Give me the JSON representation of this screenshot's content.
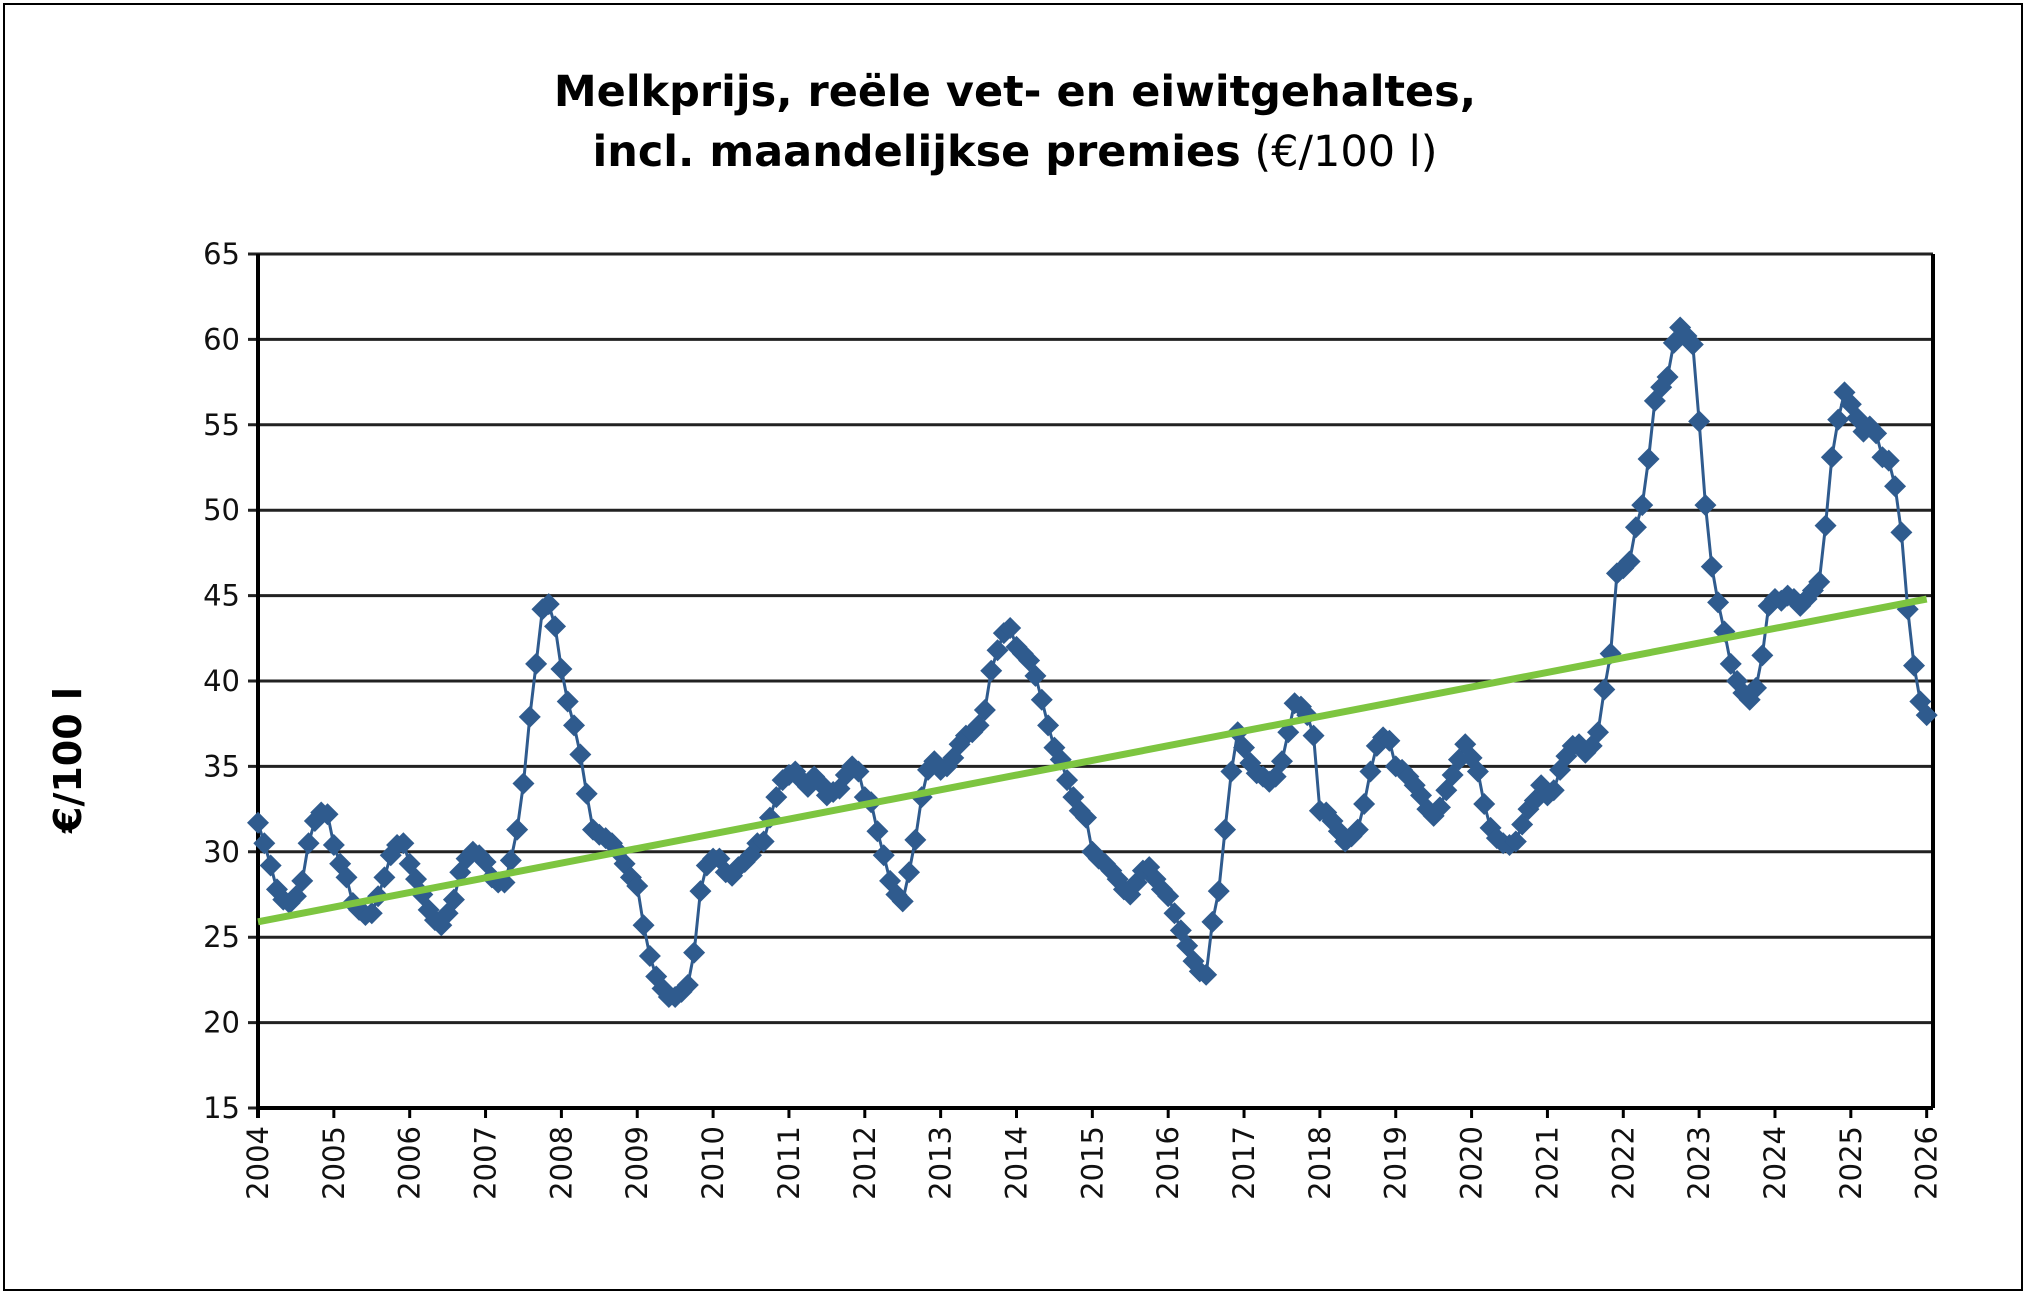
{
  "chart_data": {
    "type": "line",
    "title_line1": "Melkprijs, reële vet- en eiwitgehaltes,",
    "title_line2_bold": "incl. maandelijkse premies",
    "title_unit": "(€/100 l)",
    "xlabel": "",
    "ylabel": "€/100 l",
    "ylim": [
      15,
      65
    ],
    "yticks": [
      15,
      20,
      25,
      30,
      35,
      40,
      45,
      50,
      55,
      60,
      65
    ],
    "xticks": [
      "2004",
      "2005",
      "2006",
      "2007",
      "2008",
      "2009",
      "2010",
      "2011",
      "2012",
      "2013",
      "2014",
      "2015",
      "2016",
      "2017",
      "2018",
      "2019",
      "2020",
      "2021",
      "2022",
      "2023",
      "2024",
      "2025",
      "2026"
    ],
    "grid": true,
    "x_start": "2004-01",
    "x_frequency": "monthly",
    "colors": {
      "series": "#2f5b8e",
      "trend": "#7dc540"
    },
    "series": [
      {
        "marker": "diamond",
        "values": [
          31.7,
          30.5,
          29.2,
          27.8,
          27.2,
          27.0,
          27.4,
          28.3,
          30.5,
          31.8,
          32.3,
          32.2,
          30.4,
          29.3,
          28.5,
          27.0,
          26.6,
          26.3,
          26.4,
          27.4,
          28.5,
          29.8,
          30.4,
          30.5,
          29.3,
          28.4,
          27.5,
          26.6,
          26.0,
          25.7,
          26.4,
          27.2,
          28.8,
          29.6,
          30.0,
          29.8,
          29.4,
          28.5,
          28.2,
          28.2,
          29.5,
          31.3,
          34.0,
          37.9,
          41.0,
          44.2,
          44.5,
          43.2,
          40.7,
          38.8,
          37.4,
          35.7,
          33.4,
          31.3,
          31.0,
          30.8,
          30.5,
          30.0,
          29.3,
          28.5,
          28.0,
          25.7,
          23.9,
          22.7,
          22.0,
          21.5,
          21.5,
          21.8,
          22.2,
          24.1,
          27.7,
          29.2,
          29.6,
          29.6,
          28.8,
          28.6,
          29.1,
          29.4,
          29.8,
          30.5,
          30.6,
          32.0,
          33.2,
          34.2,
          34.5,
          34.7,
          34.2,
          33.8,
          34.4,
          34.0,
          33.3,
          33.5,
          33.7,
          34.5,
          35.0,
          34.7,
          33.2,
          32.9,
          31.2,
          29.8,
          28.3,
          27.5,
          27.1,
          28.8,
          30.7,
          33.2,
          34.8,
          35.3,
          34.8,
          35.0,
          35.5,
          36.3,
          36.8,
          37.0,
          37.4,
          38.3,
          40.6,
          41.8,
          42.8,
          43.1,
          42.0,
          41.6,
          41.2,
          40.3,
          38.9,
          37.4,
          36.1,
          35.4,
          34.2,
          33.2,
          32.4,
          32.0,
          30.0,
          29.6,
          29.3,
          28.9,
          28.4,
          27.8,
          27.5,
          28.2,
          28.9,
          29.1,
          28.4,
          27.8,
          27.4,
          26.4,
          25.4,
          24.5,
          23.6,
          23.0,
          22.8,
          25.9,
          27.7,
          31.3,
          34.7,
          37.0,
          36.1,
          35.2,
          34.6,
          34.4,
          34.1,
          34.4,
          35.3,
          37.0,
          38.7,
          38.5,
          38.0,
          36.8,
          32.4,
          32.3,
          31.8,
          31.2,
          30.6,
          30.9,
          31.3,
          32.8,
          34.7,
          36.2,
          36.7,
          36.5,
          35.0,
          34.8,
          34.4,
          33.9,
          33.3,
          32.5,
          32.1,
          32.6,
          33.6,
          34.5,
          35.4,
          36.3,
          35.5,
          34.7,
          32.8,
          31.4,
          30.8,
          30.5,
          30.4,
          30.6,
          31.6,
          32.5,
          33.0,
          33.9,
          33.3,
          33.6,
          34.8,
          35.6,
          36.2,
          36.3,
          35.8,
          36.2,
          37.0,
          39.5,
          41.6,
          46.3,
          46.6,
          47.0,
          49.0,
          50.3,
          53.0,
          56.4,
          57.2,
          57.8,
          59.8,
          60.7,
          60.2,
          59.7,
          55.2,
          50.3,
          46.7,
          44.6,
          42.9,
          41.0,
          40.0,
          39.3,
          38.9,
          39.6,
          41.5,
          44.4,
          44.8,
          44.7,
          45.0,
          44.8,
          44.4,
          44.8,
          45.3,
          45.8,
          49.1,
          53.1,
          55.3,
          56.9,
          56.2,
          55.4,
          54.6,
          54.9,
          54.5,
          53.1,
          52.9,
          51.4,
          48.7,
          44.2,
          40.9,
          38.8,
          38.0
        ]
      }
    ],
    "trendline": {
      "type": "linear",
      "start": 25.9,
      "end": 44.8
    }
  }
}
